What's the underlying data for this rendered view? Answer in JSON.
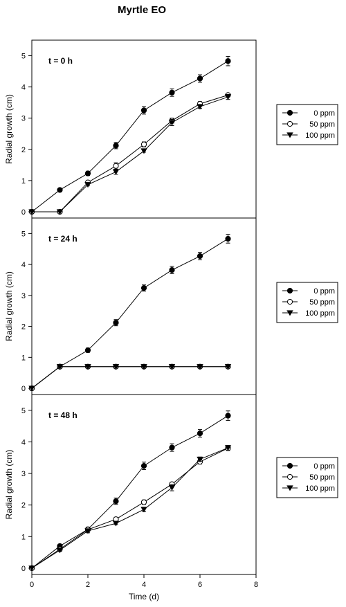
{
  "figure_title": "Myrtle EO",
  "chart_data": {
    "type": "line",
    "shared_x_axis": {
      "label": "Time (d)",
      "range": [
        0,
        8
      ],
      "ticks": [
        0,
        2,
        4,
        6,
        8
      ]
    },
    "y_axis": {
      "label": "Radial growth (cm)",
      "range": [
        -0.2,
        5.5
      ],
      "ticks": [
        0,
        1,
        2,
        3,
        4,
        5
      ]
    },
    "series_styles": [
      {
        "name": "0 ppm",
        "marker": "filled-circle"
      },
      {
        "name": "50 ppm",
        "marker": "open-circle"
      },
      {
        "name": "100 ppm",
        "marker": "filled-triangle-down"
      }
    ],
    "panels": [
      {
        "label": "t = 0 h",
        "x": [
          0,
          1,
          2,
          3,
          4,
          5,
          6,
          7
        ],
        "series": [
          {
            "name": "0 ppm",
            "values": [
              0,
              0.7,
              1.23,
              2.12,
              3.25,
              3.82,
              4.27,
              4.83
            ],
            "errors": [
              0,
              0.04,
              0.07,
              0.1,
              0.12,
              0.12,
              0.12,
              0.15
            ]
          },
          {
            "name": "50 ppm",
            "values": [
              0,
              0,
              0.94,
              1.47,
              2.16,
              2.92,
              3.46,
              3.74
            ],
            "errors": [
              0,
              0,
              0.05,
              0.1,
              0.08,
              0.08,
              0.07,
              0.06
            ]
          },
          {
            "name": "100 ppm",
            "values": [
              0,
              0,
              0.87,
              1.28,
              1.95,
              2.86,
              3.37,
              3.68
            ],
            "errors": [
              0,
              0,
              0.04,
              0.08,
              0.04,
              0.1,
              0.06,
              0.08
            ]
          }
        ]
      },
      {
        "label": "t = 24 h",
        "x": [
          0,
          1,
          2,
          3,
          4,
          5,
          6,
          7
        ],
        "series": [
          {
            "name": "0 ppm",
            "values": [
              0,
              0.7,
              1.23,
              2.12,
              3.24,
              3.82,
              4.27,
              4.83
            ],
            "errors": [
              0,
              0.04,
              0.07,
              0.1,
              0.1,
              0.12,
              0.12,
              0.14
            ]
          },
          {
            "name": "50 ppm",
            "values": [
              0,
              0.7,
              0.7,
              0.7,
              0.7,
              0.7,
              0.7,
              0.7
            ],
            "errors": [
              0,
              0.02,
              0.02,
              0.02,
              0.02,
              0.02,
              0.02,
              0.02
            ]
          },
          {
            "name": "100 ppm",
            "values": [
              0,
              0.7,
              0.7,
              0.7,
              0.7,
              0.7,
              0.7,
              0.7
            ],
            "errors": [
              0,
              0.02,
              0.02,
              0.02,
              0.02,
              0.02,
              0.02,
              0.02
            ]
          }
        ]
      },
      {
        "label": "t = 48 h",
        "x": [
          0,
          1,
          2,
          3,
          4,
          5,
          6,
          7
        ],
        "series": [
          {
            "name": "0 ppm",
            "values": [
              0,
              0.7,
              1.23,
              2.12,
              3.24,
              3.82,
              4.27,
              4.83
            ],
            "errors": [
              0,
              0.04,
              0.07,
              0.1,
              0.12,
              0.12,
              0.12,
              0.15
            ]
          },
          {
            "name": "50 ppm",
            "values": [
              0,
              0.6,
              1.22,
              1.55,
              2.09,
              2.66,
              3.37,
              3.8
            ],
            "errors": [
              0,
              0.04,
              0.05,
              0.04,
              0.07,
              0.06,
              0.07,
              0.07
            ]
          },
          {
            "name": "100 ppm",
            "values": [
              0,
              0.57,
              1.18,
              1.42,
              1.86,
              2.55,
              3.45,
              3.81
            ],
            "errors": [
              0,
              0.04,
              0.06,
              0.04,
              0.07,
              0.1,
              0.07,
              0.08
            ]
          }
        ]
      }
    ],
    "legend_entries": [
      "0 ppm",
      "50 ppm",
      "100 ppm"
    ],
    "legend_position": "right of each panel",
    "grid": false
  }
}
